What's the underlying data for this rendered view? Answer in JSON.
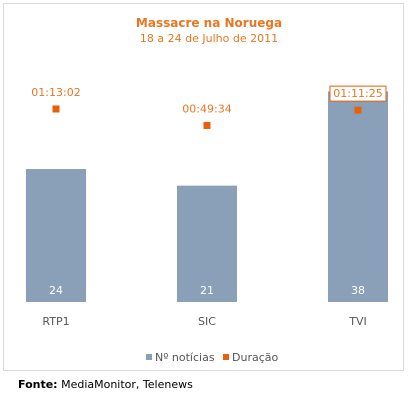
{
  "chart_data": {
    "type": "bar",
    "title": "Massacre na Noruega",
    "subtitle": "18 a 24 de Julho de 2011",
    "categories": [
      "RTP1",
      "SIC",
      "TVI"
    ],
    "series": [
      {
        "name": "Nº notícias",
        "type": "bar",
        "values": [
          24,
          21,
          38
        ],
        "color": "#8a9fb8"
      },
      {
        "name": "Duração",
        "type": "point",
        "values": [
          "01:13:02",
          "00:49:34",
          "01:11:25"
        ],
        "color": "#e8600a"
      }
    ],
    "highlighted_label_index": 2
  },
  "footer": {
    "label": "Fonte:",
    "text": "MediaMonitor, Telenews"
  }
}
